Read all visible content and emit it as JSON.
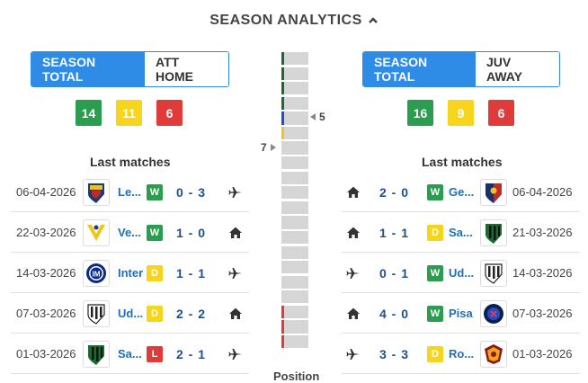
{
  "header": {
    "title": "SEASON ANALYTICS"
  },
  "left": {
    "toggle": {
      "active": "SEASON TOTAL",
      "inactive": "ATT HOME"
    },
    "summary": {
      "wins": "14",
      "draws": "11",
      "losses": "6"
    },
    "last_matches_title": "Last matches",
    "matches": [
      {
        "date": "06-04-2026",
        "team": "Le...",
        "logo": "lecce-logo",
        "result": "W",
        "score": "0 - 3",
        "venue": "away"
      },
      {
        "date": "22-03-2026",
        "team": "Ve...",
        "logo": "verona-logo",
        "result": "W",
        "score": "1 - 0",
        "venue": "home"
      },
      {
        "date": "14-03-2026",
        "team": "Inter",
        "logo": "inter-logo",
        "result": "D",
        "score": "1 - 1",
        "venue": "away"
      },
      {
        "date": "07-03-2026",
        "team": "Ud...",
        "logo": "udinese-logo",
        "result": "D",
        "score": "2 - 2",
        "venue": "home"
      },
      {
        "date": "01-03-2026",
        "team": "Sa...",
        "logo": "sassuolo-logo",
        "result": "L",
        "score": "2 - 1",
        "venue": "away"
      }
    ]
  },
  "right": {
    "toggle": {
      "active": "SEASON TOTAL",
      "inactive": "JUV AWAY"
    },
    "summary": {
      "wins": "16",
      "draws": "9",
      "losses": "6"
    },
    "last_matches_title": "Last matches",
    "matches": [
      {
        "date": "06-04-2026",
        "team": "Ge...",
        "logo": "genoa-logo",
        "result": "W",
        "score": "2 - 0",
        "venue": "home"
      },
      {
        "date": "21-03-2026",
        "team": "Sa...",
        "logo": "sassuolo-logo",
        "result": "D",
        "score": "1 - 1",
        "venue": "home"
      },
      {
        "date": "14-03-2026",
        "team": "Ud...",
        "logo": "udinese-logo",
        "result": "W",
        "score": "0 - 1",
        "venue": "away"
      },
      {
        "date": "07-03-2026",
        "team": "Pisa",
        "logo": "pisa-logo",
        "result": "W",
        "score": "4 - 0",
        "venue": "home"
      },
      {
        "date": "01-03-2026",
        "team": "Ro...",
        "logo": "roma-logo",
        "result": "D",
        "score": "3 - 3",
        "venue": "away"
      }
    ]
  },
  "position": {
    "label": "Position",
    "total_slots": 20,
    "left_position": "7",
    "right_position": "5",
    "zones": {
      "champions": "#1a6b2f",
      "europa": "#1f4fd1",
      "conference": "#f2c51b",
      "relegation": "#e03b3b"
    },
    "zone_slots": {
      "champions": [
        1,
        2,
        3,
        4
      ],
      "europa": [
        5
      ],
      "conference": [
        6
      ],
      "relegation": [
        18,
        19,
        20
      ]
    }
  },
  "colors": {
    "accent": "#2e8be6",
    "win": "#2a9d4f",
    "draw": "#f7d51d",
    "loss": "#e03b3b",
    "score": "#1f4f8c"
  }
}
